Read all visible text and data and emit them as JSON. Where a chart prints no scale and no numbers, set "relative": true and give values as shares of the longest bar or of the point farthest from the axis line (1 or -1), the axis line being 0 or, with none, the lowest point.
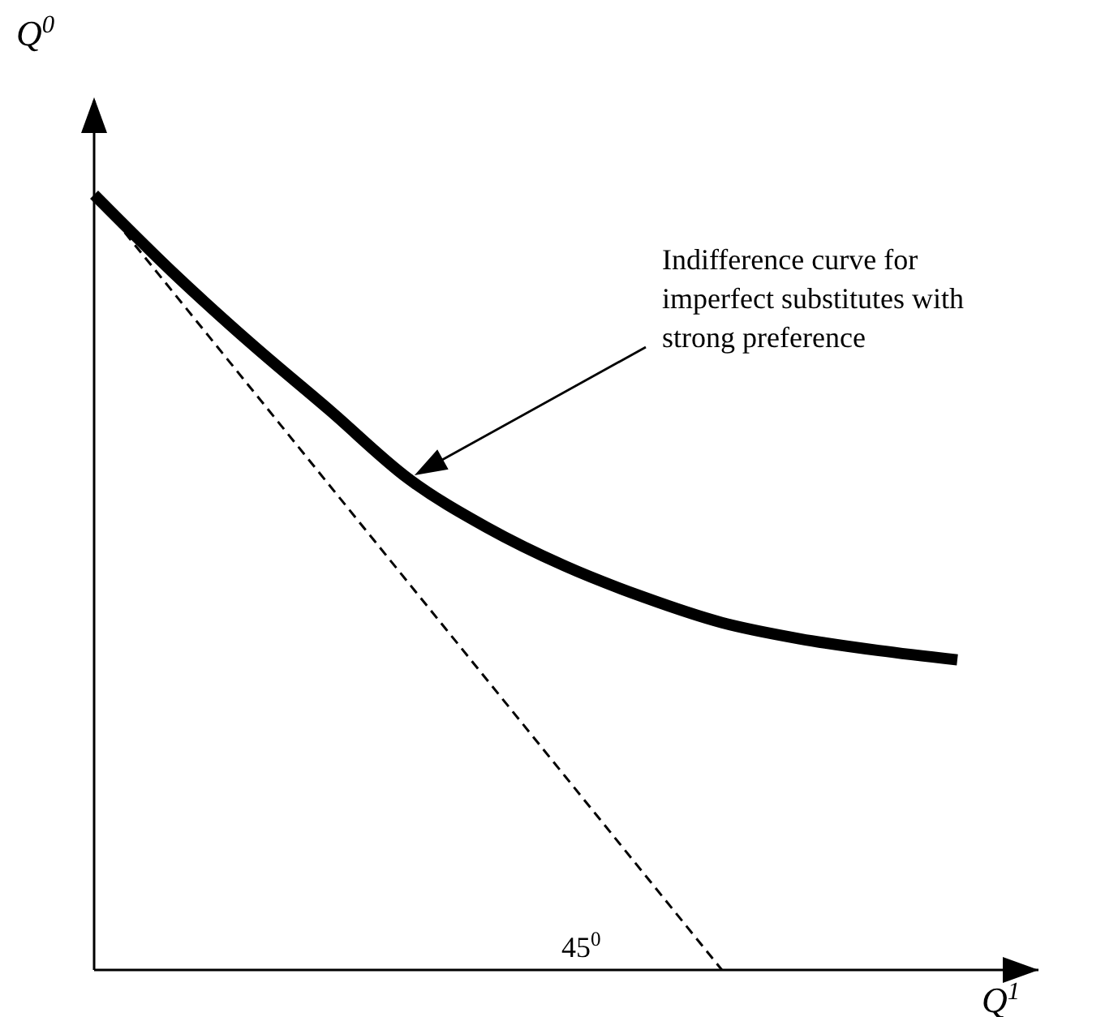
{
  "chart_data": {
    "type": "line",
    "relative": true,
    "xlabel": "Q$^{1}$",
    "ylabel": "Q$^{0}$",
    "categories": [
      null,
      null,
      null,
      null,
      null,
      null,
      null,
      null,
      null,
      null,
      null,
      null
    ],
    "series": [
      {
        "color": "#000000",
        "line_style": "solid",
        "values": [
          1,
          0.9,
          0.808,
          0.722,
          0.634,
          0.571,
          0.521,
          0.481,
          0.448,
          0.427,
          0.412,
          0.4
        ]
      },
      {
        "color": "#000000",
        "line_style": "dashed",
        "values": [
          1,
          0.875,
          0.75,
          0.625,
          0.5,
          0.375,
          0.25,
          0.125,
          0,
          null,
          null,
          null
        ]
      }
    ],
    "annotations": [
      "Indifference curve for imperfect substitutes with strong preference",
      "45$^{0}$"
    ],
    "marker": "none"
  }
}
